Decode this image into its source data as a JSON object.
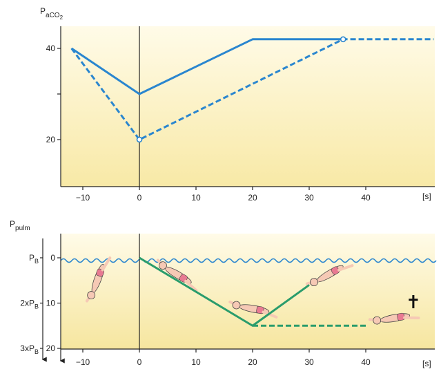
{
  "chart_data": [
    {
      "type": "line",
      "ylabel": "P",
      "ylabel_sub": "aCO",
      "ylabel_sub2": "2",
      "x_unit": "[s]",
      "xlim": [
        -12,
        52
      ],
      "ylim": [
        10,
        44
      ],
      "x_ticks": [
        -10,
        0,
        10,
        20,
        30,
        40
      ],
      "x_tick_labels": [
        "−10",
        "0",
        "10",
        "20",
        "30",
        "40"
      ],
      "y_ticks": [
        20,
        40
      ],
      "y_minor_ticks": [
        30
      ],
      "y_tick_labels": [
        "20",
        "40"
      ],
      "series": [
        {
          "style": "solid",
          "color": "#2a86cf",
          "x": [
            -12,
            0,
            20,
            36
          ],
          "y": [
            40,
            30,
            42,
            42
          ]
        },
        {
          "style": "dashed",
          "color": "#2a86cf",
          "x": [
            -12,
            0,
            36,
            52
          ],
          "y": [
            40,
            20,
            42,
            42
          ]
        }
      ],
      "markers": [
        {
          "x": 0,
          "y": 20
        },
        {
          "x": 36,
          "y": 42
        }
      ]
    },
    {
      "type": "line",
      "ylabel": "P",
      "ylabel_sub": "pulm",
      "x_unit": "[s]",
      "xlim": [
        -12,
        52
      ],
      "ylim": [
        0,
        20
      ],
      "y_inverted": true,
      "x_ticks": [
        -10,
        0,
        10,
        20,
        30,
        40
      ],
      "x_tick_labels": [
        "−10",
        "0",
        "10",
        "20",
        "30",
        "40"
      ],
      "y_ticks": [
        0,
        10,
        20
      ],
      "y_tick_labels": [
        "0",
        "10",
        "20"
      ],
      "pressure_labels": [
        {
          "main": "P",
          "sub": "B",
          "value": 0
        },
        {
          "main": "2xP",
          "sub": "B",
          "value": 10
        },
        {
          "main": "3xP",
          "sub": "B",
          "value": 20
        }
      ],
      "series": [
        {
          "style": "solid",
          "color": "#2a9c6c",
          "x": [
            0,
            20,
            30
          ],
          "y": [
            0,
            15,
            6
          ]
        },
        {
          "style": "dashed",
          "color": "#2a9c6c",
          "x": [
            20,
            40
          ],
          "y": [
            15,
            15
          ]
        }
      ],
      "annotation": "✝"
    }
  ]
}
